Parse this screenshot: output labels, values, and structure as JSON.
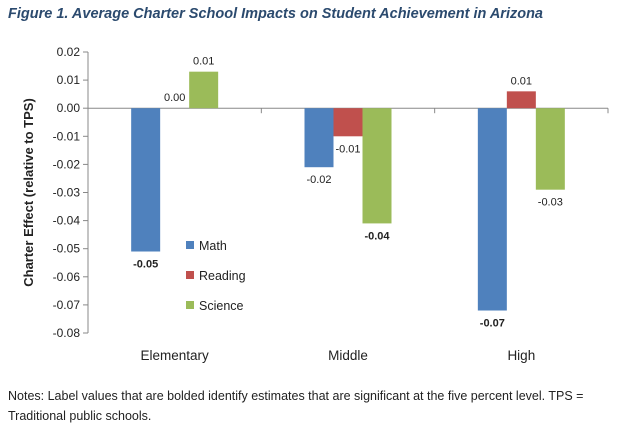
{
  "figure": {
    "title": "Figure 1. Average Charter School Impacts on Student Achievement in Arizona",
    "notes": "Notes: Label values that are bolded identify estimates that are significant at the five percent level. TPS = Traditional public schools."
  },
  "chart_data": {
    "type": "bar",
    "title": "",
    "xlabel": "",
    "ylabel": "Charter Effect (relative to TPS)",
    "categories": [
      "Elementary",
      "Middle",
      "High"
    ],
    "ylim": [
      -0.08,
      0.02
    ],
    "yticks": [
      "0.02",
      "0.01",
      "0.00",
      "-0.01",
      "-0.02",
      "-0.03",
      "-0.04",
      "-0.05",
      "-0.06",
      "-0.07",
      "-0.08"
    ],
    "grid": false,
    "legend_position": "center",
    "series": [
      {
        "name": "Math",
        "color": "#4f81bd",
        "values": [
          -0.051,
          -0.021,
          -0.072
        ],
        "labels": [
          "-0.05",
          "-0.02",
          "-0.07"
        ],
        "bold": [
          true,
          false,
          true
        ]
      },
      {
        "name": "Reading",
        "color": "#c0504d",
        "values": [
          0.0,
          -0.01,
          0.006
        ],
        "labels": [
          "0.00",
          "-0.01",
          "0.01"
        ],
        "bold": [
          false,
          false,
          false
        ]
      },
      {
        "name": "Science",
        "color": "#9bbb59",
        "values": [
          0.013,
          -0.041,
          -0.029
        ],
        "labels": [
          "0.01",
          "-0.04",
          "-0.03"
        ],
        "bold": [
          false,
          true,
          false
        ]
      }
    ]
  }
}
